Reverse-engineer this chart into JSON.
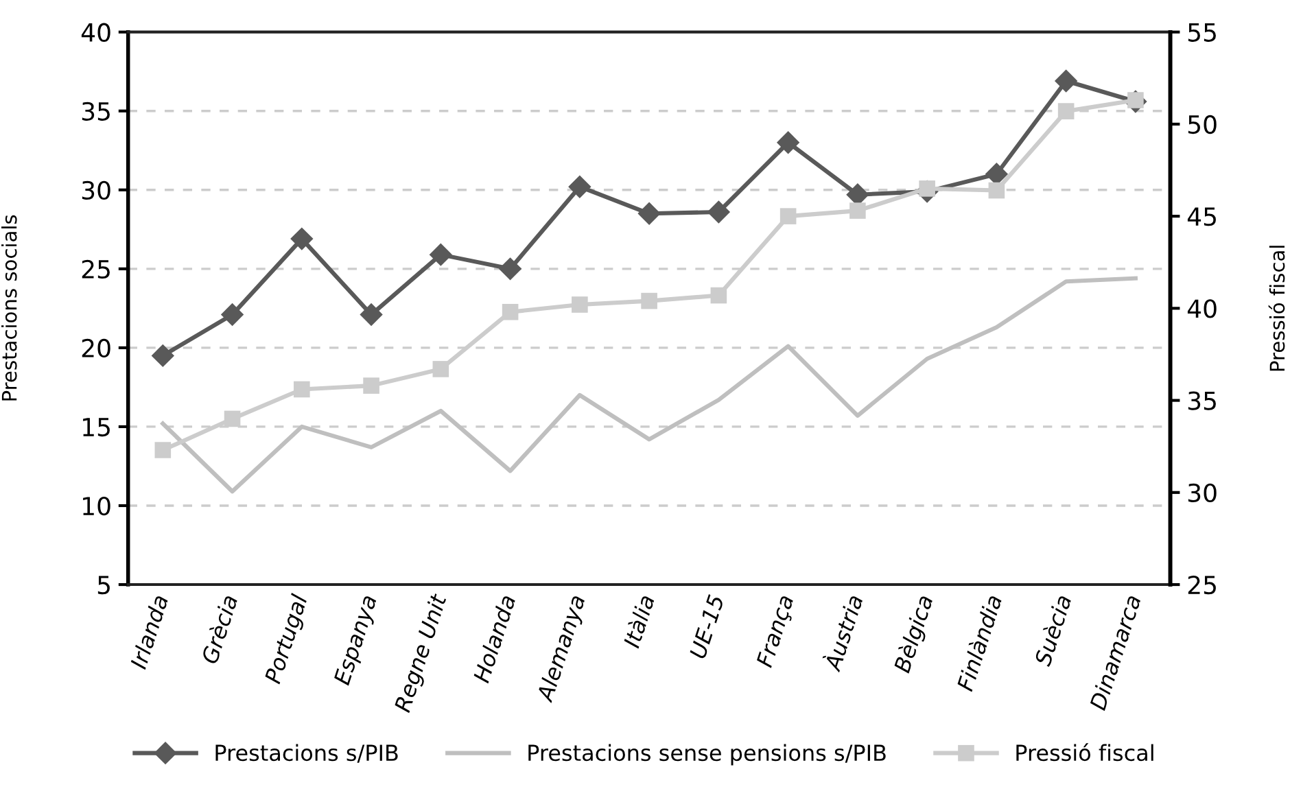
{
  "chart_data": {
    "type": "line",
    "categories": [
      "Irlanda",
      "Grècia",
      "Portugal",
      "Espanya",
      "Regne Unit",
      "Holanda",
      "Alemanya",
      "Itàlia",
      "UE-15",
      "França",
      "Àustria",
      "Bèlgica",
      "Finlàndia",
      "Suècia",
      "Dinamarca"
    ],
    "series": [
      {
        "name": "Prestacions s/PIB",
        "color": "#595959",
        "marker": "diamond",
        "values": [
          19.5,
          22.1,
          26.9,
          22.1,
          25.9,
          25.0,
          30.2,
          28.5,
          28.6,
          33.0,
          29.7,
          29.9,
          31.0,
          36.9,
          35.6
        ]
      },
      {
        "name": "Prestacions sense pensions s/PIB",
        "color": "#bfbfbf",
        "marker": "none",
        "values": [
          15.2,
          10.9,
          15.0,
          13.7,
          16.0,
          12.2,
          17.0,
          14.2,
          16.7,
          20.1,
          15.7,
          19.3,
          21.3,
          24.2,
          24.4
        ]
      },
      {
        "name": "Pressió fiscal",
        "color": "#cccccc",
        "marker": "square",
        "axis": "y2",
        "values": [
          32.3,
          34.0,
          35.6,
          35.8,
          36.7,
          39.8,
          40.2,
          40.4,
          40.7,
          45.0,
          45.3,
          46.5,
          46.4,
          50.7,
          51.3
        ]
      }
    ],
    "ylabel": "Prestacions socials",
    "y2label": "Pressió fiscal",
    "ylim": [
      5,
      40
    ],
    "yticks": [
      5,
      10,
      15,
      20,
      25,
      30,
      35,
      40
    ],
    "y2lim": [
      25,
      55
    ],
    "y2ticks": [
      25,
      30,
      35,
      40,
      45,
      50,
      55
    ],
    "grid": "y",
    "legend": "bottom"
  }
}
